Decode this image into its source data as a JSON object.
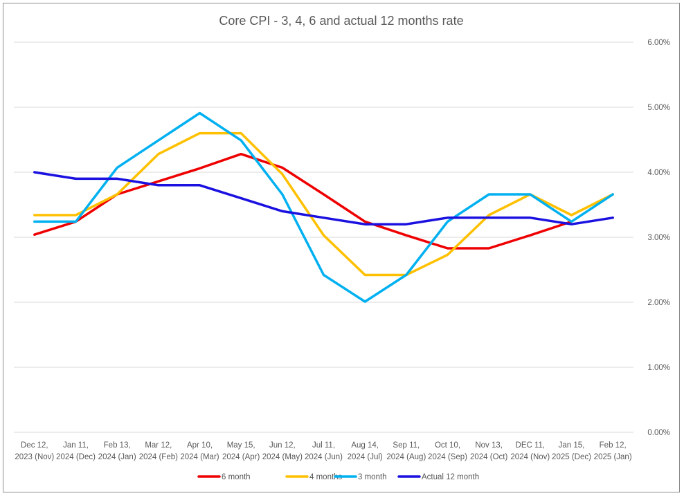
{
  "chart_data": {
    "type": "line",
    "title": "Core CPI - 3, 4, 6 and actual 12 months rate",
    "xlabel": "",
    "ylabel": "",
    "categories": [
      [
        "Dec 12,",
        "2023 (Nov)"
      ],
      [
        "Jan 11,",
        "2024 (Dec)"
      ],
      [
        "Feb 13,",
        "2024 (Jan)"
      ],
      [
        "Mar 12,",
        "2024 (Feb)"
      ],
      [
        "Apr 10,",
        "2024 (Mar)"
      ],
      [
        "May 15,",
        "2024 (Apr)"
      ],
      [
        "Jun 12,",
        "2024 (May)"
      ],
      [
        "Jul 11,",
        "2024 (Jun)"
      ],
      [
        "Aug 14,",
        "2024 (Jul)"
      ],
      [
        "Sep 11,",
        "2024 (Aug)"
      ],
      [
        "Oct 10,",
        "2024 (Sep)"
      ],
      [
        "Nov 13,",
        "2024 (Oct)"
      ],
      [
        "DEC 11,",
        "2024 (Nov)"
      ],
      [
        "Jan 15,",
        "2025 (Dec)"
      ],
      [
        "Feb 12,",
        "2025 (Jan)"
      ]
    ],
    "ylim": [
      0,
      6
    ],
    "yticks": [
      "0.00%",
      "1.00%",
      "2.00%",
      "3.00%",
      "4.00%",
      "5.00%",
      "6.00%"
    ],
    "grid": true,
    "legend_position": "bottom",
    "series": [
      {
        "name": "6 month",
        "color": "#ee0000",
        "values": [
          3.04,
          3.24,
          3.66,
          3.86,
          4.06,
          4.28,
          4.07,
          3.66,
          3.24,
          3.03,
          2.83,
          2.83,
          3.03,
          3.24,
          null
        ]
      },
      {
        "name": "4 months",
        "color": "#ffc000",
        "values": [
          3.34,
          3.34,
          3.66,
          4.28,
          4.6,
          4.6,
          3.97,
          3.03,
          2.42,
          2.42,
          2.73,
          3.34,
          3.66,
          3.34,
          3.66
        ]
      },
      {
        "name": "3 month",
        "color": "#00b0f0",
        "values": [
          3.24,
          3.24,
          4.07,
          4.49,
          4.91,
          4.49,
          3.66,
          2.42,
          2.01,
          2.42,
          3.24,
          3.66,
          3.66,
          3.24,
          3.66
        ]
      },
      {
        "name": "Actual 12 month",
        "color": "#1a10e0",
        "values": [
          4.0,
          3.9,
          3.9,
          3.8,
          3.8,
          3.6,
          3.4,
          3.3,
          3.2,
          3.2,
          3.3,
          3.3,
          3.3,
          3.2,
          3.3
        ]
      }
    ]
  }
}
